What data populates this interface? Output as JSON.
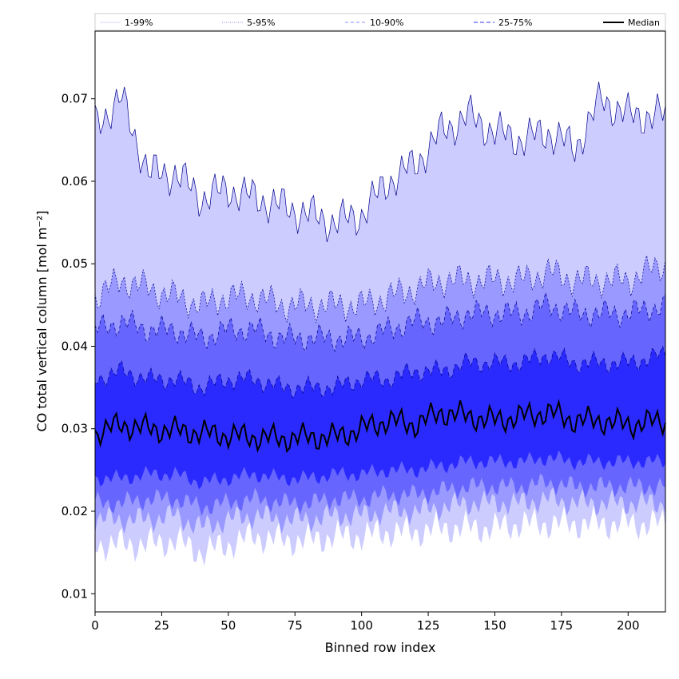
{
  "chart_data": {
    "type": "area",
    "title": "",
    "xlabel": "Binned row index",
    "ylabel": "CO total vertical column [mol m⁻²]",
    "xlim": [
      0,
      214
    ],
    "ylim": [
      0.0078,
      0.0782
    ],
    "xticks": [
      "0",
      "25",
      "50",
      "75",
      "100",
      "125",
      "150",
      "175",
      "200"
    ],
    "yticks": [
      "0.01",
      "0.02",
      "0.03",
      "0.04",
      "0.05",
      "0.06",
      "0.07"
    ],
    "grid": false,
    "legend_position": "top",
    "legend": [
      {
        "label": "1-99%",
        "color": "#ccccff",
        "style": "solid-thin"
      },
      {
        "label": "5-95%",
        "color": "#6666ee",
        "style": "dotted"
      },
      {
        "label": "10-90%",
        "color": "#8888ff",
        "style": "dashed"
      },
      {
        "label": "25-75%",
        "color": "#3333ee",
        "style": "dashed"
      },
      {
        "label": "Median",
        "color": "#000000",
        "style": "solid"
      }
    ],
    "x_knots": [
      0,
      10,
      20,
      30,
      40,
      50,
      60,
      70,
      80,
      90,
      100,
      110,
      120,
      130,
      140,
      150,
      160,
      170,
      180,
      190,
      200,
      214
    ],
    "series": [
      {
        "name": "1-99%",
        "lower": [
          0.016,
          0.016,
          0.016,
          0.0165,
          0.015,
          0.016,
          0.017,
          0.0165,
          0.0165,
          0.017,
          0.017,
          0.0175,
          0.0175,
          0.018,
          0.018,
          0.018,
          0.0185,
          0.0185,
          0.0185,
          0.0185,
          0.0185,
          0.0185
        ],
        "upper": [
          0.067,
          0.07,
          0.061,
          0.061,
          0.058,
          0.059,
          0.058,
          0.057,
          0.056,
          0.055,
          0.056,
          0.06,
          0.062,
          0.066,
          0.068,
          0.066,
          0.065,
          0.066,
          0.064,
          0.07,
          0.068,
          0.068
        ]
      },
      {
        "name": "5-95%",
        "lower": [
          0.019,
          0.019,
          0.019,
          0.0195,
          0.018,
          0.019,
          0.0195,
          0.019,
          0.019,
          0.0195,
          0.0195,
          0.02,
          0.02,
          0.0205,
          0.021,
          0.021,
          0.021,
          0.0215,
          0.021,
          0.021,
          0.021,
          0.021
        ],
        "upper": [
          0.046,
          0.048,
          0.047,
          0.046,
          0.045,
          0.046,
          0.046,
          0.045,
          0.045,
          0.045,
          0.045,
          0.046,
          0.047,
          0.048,
          0.048,
          0.048,
          0.048,
          0.049,
          0.048,
          0.048,
          0.048,
          0.05
        ]
      },
      {
        "name": "10-90%",
        "lower": [
          0.021,
          0.021,
          0.0215,
          0.0215,
          0.0205,
          0.021,
          0.0215,
          0.021,
          0.021,
          0.0215,
          0.0215,
          0.022,
          0.022,
          0.0225,
          0.023,
          0.023,
          0.023,
          0.0235,
          0.023,
          0.023,
          0.023,
          0.023
        ],
        "upper": [
          0.042,
          0.043,
          0.042,
          0.042,
          0.041,
          0.042,
          0.042,
          0.041,
          0.041,
          0.041,
          0.041,
          0.042,
          0.043,
          0.043,
          0.044,
          0.044,
          0.044,
          0.045,
          0.044,
          0.044,
          0.044,
          0.045
        ]
      },
      {
        "name": "25-75%",
        "lower": [
          0.024,
          0.024,
          0.0245,
          0.0245,
          0.0235,
          0.024,
          0.0245,
          0.024,
          0.024,
          0.0245,
          0.0245,
          0.025,
          0.025,
          0.0255,
          0.026,
          0.026,
          0.026,
          0.0265,
          0.026,
          0.026,
          0.026,
          0.026
        ],
        "upper": [
          0.036,
          0.037,
          0.036,
          0.036,
          0.035,
          0.036,
          0.036,
          0.035,
          0.035,
          0.035,
          0.036,
          0.036,
          0.037,
          0.037,
          0.038,
          0.038,
          0.038,
          0.039,
          0.038,
          0.038,
          0.038,
          0.039
        ]
      },
      {
        "name": "Median",
        "values": [
          0.0295,
          0.0305,
          0.03,
          0.0298,
          0.0295,
          0.0292,
          0.029,
          0.0288,
          0.029,
          0.029,
          0.03,
          0.031,
          0.0305,
          0.032,
          0.0315,
          0.031,
          0.0315,
          0.032,
          0.031,
          0.031,
          0.0305,
          0.031
        ]
      }
    ],
    "colors": {
      "band_1_99": "#ccccff",
      "band_5_95": "#9999ff",
      "band_10_90": "#6666ff",
      "band_25_75": "#2a2aff",
      "edge": "#00008b",
      "median": "#000000"
    }
  }
}
